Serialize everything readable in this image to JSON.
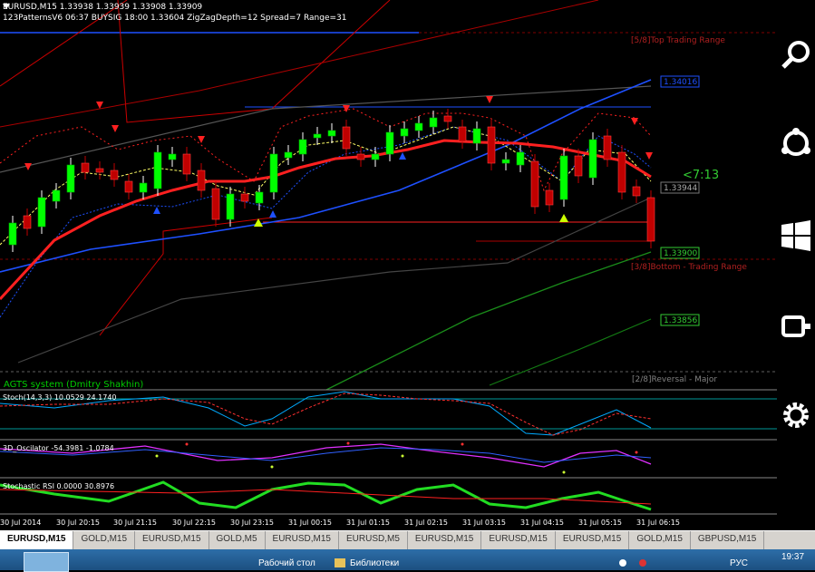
{
  "header": {
    "symbol_line": "EURUSD,M15  1.33938 1.33939 1.33908 1.33909",
    "indicator_line": "123PatternsV6  06:37  BUYSIG  18:00  1.33604  ZigZagDepth=12  Spread=7  Range=31"
  },
  "levels": {
    "top_trading_range": "[5/8]Top Trading Range",
    "bottom_trading_range": "[3/8]Bottom - Trading Range",
    "reversal_major": "[2/8]Reversal - Major"
  },
  "price_labels": {
    "p1": "1.34016",
    "p2": "1.33944",
    "p3": "1.33900",
    "p4": "1.33856"
  },
  "countdown": "<7:13",
  "system_label": "AGTS system (Dmitry Shakhin)",
  "indicators": {
    "stoch": "Stoch(14,3,3) 10.0529 24.1740",
    "osc": "3D_Oscilator -54.3981 -1.0784",
    "srsi": "Stochastic RSI 0.0000 30.8976"
  },
  "time_axis": [
    "30 Jul 2014",
    "30 Jul 20:15",
    "30 Jul 21:15",
    "30 Jul 22:15",
    "30 Jul 23:15",
    "31 Jul 00:15",
    "31 Jul 01:15",
    "31 Jul 02:15",
    "31 Jul 03:15",
    "31 Jul 04:15",
    "31 Jul 05:15",
    "31 Jul 06:15"
  ],
  "tabs": [
    "EURUSD,M15",
    "GOLD,M15",
    "EURUSD,M15",
    "GOLD,M5",
    "EURUSD,M15",
    "EURUSD,M5",
    "EURUSD,M15",
    "EURUSD,M15",
    "EURUSD,M15",
    "GOLD,M15",
    "GBPUSD,M15"
  ],
  "active_tab": "EURUSD,M15",
  "taskbar": {
    "desktop": "Рабочий стол",
    "libraries": "Библиотеки",
    "lang": "РУС",
    "clock": "19:37"
  },
  "colors": {
    "bull": "#00ff00",
    "bear": "#c00000",
    "ma": "#ff2020",
    "channel_blue": "#1e50ff",
    "accent_green": "#33cc33"
  },
  "charm_icons": [
    "search-icon",
    "share-icon",
    "start-icon",
    "devices-icon",
    "settings-icon"
  ]
}
